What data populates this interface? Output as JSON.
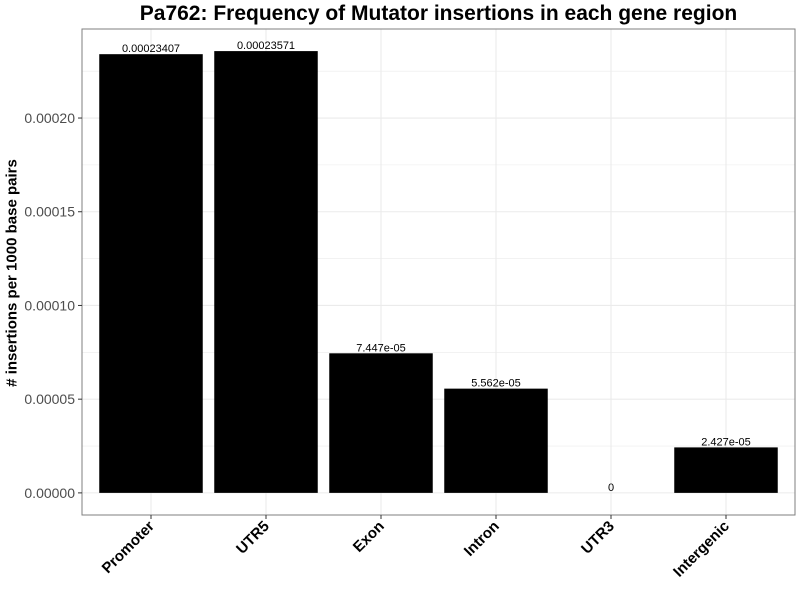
{
  "chart_data": {
    "type": "bar",
    "title": "Pa762: Frequency of Mutator insertions in each gene region",
    "xlabel": "",
    "ylabel": "# insertions per 1000 base pairs",
    "categories": [
      "Promoter",
      "UTR5",
      "Exon",
      "Intron",
      "UTR3",
      "Intergenic"
    ],
    "values": [
      0.00023407,
      0.00023571,
      7.447e-05,
      5.562e-05,
      0,
      2.427e-05
    ],
    "data_labels": [
      "0.00023407",
      "0.00023571",
      "7.447e-05",
      "5.562e-05",
      "0",
      "2.427e-05"
    ],
    "yticks": [
      0,
      5e-05,
      0.0001,
      0.00015,
      0.0002
    ],
    "ytick_labels": [
      "0.00000",
      "0.00005",
      "0.00010",
      "0.00015",
      "0.00020"
    ],
    "ylim": [
      -1.18e-05,
      0.0002475
    ],
    "grid": true,
    "bar_color": "#000000",
    "panel_border_color": "#7f7f7f",
    "grid_color": "#ebebeb"
  }
}
